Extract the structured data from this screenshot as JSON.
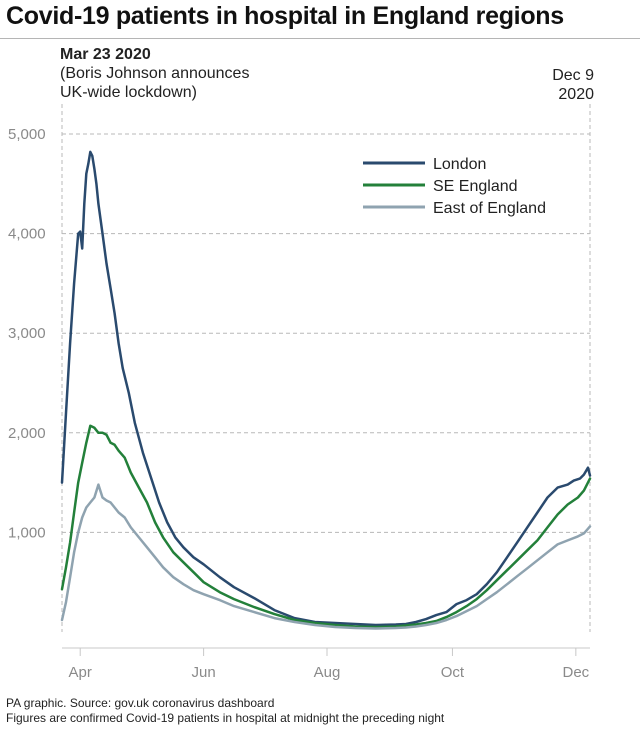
{
  "title": "Covid-19 patients in hospital in England regions",
  "annotation_start": {
    "date": "Mar 23 2020",
    "line1": "(Boris Johnson announces",
    "line2": "UK-wide lockdown)"
  },
  "annotation_end": {
    "line1": "Dec 9",
    "line2": "2020"
  },
  "footer": {
    "source": "PA graphic. Source: gov.uk coronavirus dashboard",
    "note": "Figures are confirmed Covid-19 patients in hospital at midnight the preceding night"
  },
  "chart_data": {
    "type": "line",
    "title": "Covid-19 patients in hospital in England regions",
    "x_range_days": [
      0,
      261
    ],
    "x_ticks": [
      {
        "label": "Apr",
        "day": 9
      },
      {
        "label": "Jun",
        "day": 70
      },
      {
        "label": "Aug",
        "day": 131
      },
      {
        "label": "Oct",
        "day": 193
      },
      {
        "label": "Dec",
        "day": 254
      }
    ],
    "ylim": [
      0,
      5000
    ],
    "y_ticks": [
      {
        "label": "1,000",
        "value": 1000
      },
      {
        "label": "2,000",
        "value": 2000
      },
      {
        "label": "3,000",
        "value": 3000
      },
      {
        "label": "4,000",
        "value": 4000
      },
      {
        "label": "5,000",
        "value": 5000
      }
    ],
    "grid": true,
    "legend_position": "top-right",
    "colors": {
      "london": "#2a4a6e",
      "se_england": "#23803a",
      "east_england": "#8fa3b0",
      "grid": "#b8b8b8",
      "axis_text": "#8a8a8a"
    },
    "series": [
      {
        "name": "London",
        "key": "london",
        "x": [
          0,
          2,
          4,
          6,
          8,
          9,
          10,
          11,
          12,
          13,
          14,
          15,
          16,
          17,
          18,
          20,
          22,
          24,
          26,
          28,
          30,
          33,
          36,
          40,
          44,
          48,
          52,
          56,
          60,
          65,
          70,
          78,
          85,
          95,
          105,
          115,
          125,
          135,
          145,
          155,
          165,
          170,
          175,
          180,
          185,
          190,
          195,
          200,
          205,
          210,
          215,
          220,
          225,
          230,
          235,
          240,
          245,
          250,
          253,
          256,
          258,
          260,
          261
        ],
        "values": [
          1500,
          2200,
          2900,
          3500,
          4000,
          4020,
          3850,
          4300,
          4600,
          4700,
          4820,
          4780,
          4650,
          4500,
          4300,
          4000,
          3700,
          3450,
          3200,
          2900,
          2650,
          2400,
          2100,
          1800,
          1550,
          1300,
          1100,
          950,
          850,
          750,
          680,
          550,
          450,
          340,
          220,
          140,
          100,
          90,
          80,
          70,
          75,
          80,
          100,
          130,
          170,
          200,
          280,
          320,
          380,
          480,
          600,
          750,
          900,
          1050,
          1200,
          1350,
          1450,
          1480,
          1520,
          1540,
          1580,
          1650,
          1570
        ]
      },
      {
        "name": "SE England",
        "key": "se_england",
        "x": [
          0,
          2,
          4,
          6,
          8,
          10,
          12,
          14,
          16,
          18,
          20,
          22,
          24,
          26,
          28,
          31,
          34,
          38,
          42,
          46,
          50,
          55,
          60,
          65,
          70,
          78,
          85,
          95,
          105,
          115,
          125,
          135,
          145,
          155,
          165,
          170,
          175,
          180,
          185,
          190,
          195,
          200,
          205,
          210,
          215,
          220,
          225,
          230,
          235,
          240,
          245,
          250,
          255,
          258,
          261
        ],
        "values": [
          430,
          650,
          900,
          1200,
          1500,
          1700,
          1900,
          2070,
          2050,
          2000,
          2000,
          1980,
          1900,
          1880,
          1820,
          1750,
          1600,
          1450,
          1300,
          1100,
          950,
          800,
          700,
          600,
          500,
          400,
          330,
          250,
          180,
          120,
          90,
          70,
          55,
          50,
          55,
          65,
          75,
          90,
          110,
          150,
          200,
          260,
          330,
          420,
          520,
          620,
          720,
          820,
          920,
          1050,
          1180,
          1280,
          1350,
          1420,
          1540
        ]
      },
      {
        "name": "East of England",
        "key": "east_england",
        "x": [
          0,
          2,
          4,
          6,
          8,
          10,
          12,
          14,
          16,
          18,
          20,
          22,
          24,
          26,
          28,
          31,
          34,
          38,
          42,
          46,
          50,
          55,
          60,
          65,
          70,
          78,
          85,
          95,
          105,
          115,
          125,
          135,
          145,
          155,
          165,
          170,
          175,
          180,
          185,
          190,
          195,
          200,
          205,
          210,
          215,
          220,
          225,
          230,
          235,
          240,
          245,
          250,
          255,
          258,
          261
        ],
        "values": [
          120,
          300,
          550,
          800,
          1000,
          1150,
          1250,
          1300,
          1350,
          1480,
          1350,
          1320,
          1300,
          1250,
          1200,
          1150,
          1050,
          950,
          850,
          750,
          650,
          550,
          480,
          420,
          380,
          320,
          260,
          200,
          140,
          100,
          70,
          50,
          40,
          35,
          40,
          45,
          55,
          70,
          90,
          120,
          160,
          210,
          260,
          330,
          400,
          480,
          560,
          640,
          720,
          800,
          880,
          920,
          960,
          990,
          1060
        ]
      }
    ]
  }
}
